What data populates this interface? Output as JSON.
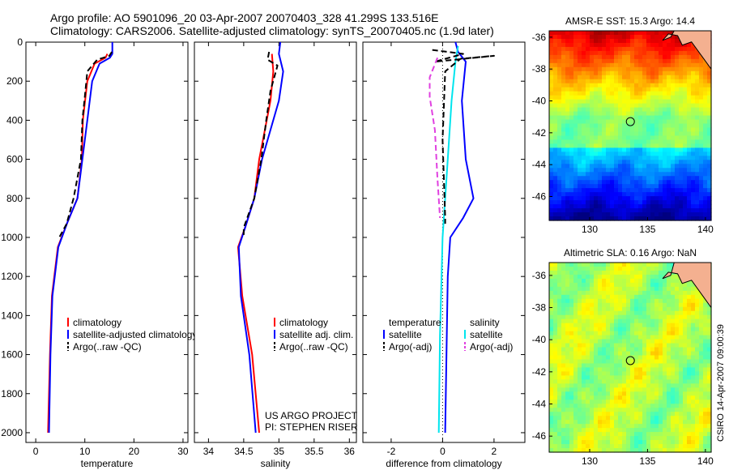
{
  "title": {
    "line1": "Argo profile: AO 5901096_20 03-Apr-2007 20070403_328 41.299S 133.516E",
    "line2": "Climatology: CARS2006. Satellite-adjusted climatology: synTS_20070405.nc (1.9d later)"
  },
  "credit": {
    "line1": "US ARGO PROJECT",
    "line2": "PI: STEPHEN RISER"
  },
  "side_stamp": "CSIRO 14-Apr-2007 09:00:39",
  "colors": {
    "climatology": "#ff0000",
    "satellite": "#0000ff",
    "argo": "#000000",
    "cyan": "#00e5ee",
    "magenta": "#e040e0",
    "land": "#f4b090"
  },
  "chart_data": [
    {
      "id": "temperature",
      "type": "line",
      "xlabel": "temperature",
      "xlim": [
        -2,
        31
      ],
      "ylim": [
        0,
        2050
      ],
      "xticks": [
        0,
        10,
        20,
        30
      ],
      "yticks": [
        0,
        200,
        400,
        600,
        800,
        1000,
        1200,
        1400,
        1600,
        1800,
        2000
      ],
      "y_inverted": true,
      "legend": {
        "placement": "lower-right",
        "entries": [
          "climatology",
          "satellite-adjusted climatology",
          "Argo(..raw -QC)"
        ]
      },
      "series": [
        {
          "name": "climatology",
          "color": "#ff0000",
          "style": "solid",
          "points": [
            [
              14.6,
              60
            ],
            [
              14.2,
              80
            ],
            [
              12,
              110
            ],
            [
              10.5,
              200
            ],
            [
              9.6,
              400
            ],
            [
              9.4,
              600
            ],
            [
              8.5,
              800
            ],
            [
              6.5,
              920
            ],
            [
              4.5,
              1050
            ],
            [
              3.3,
              1300
            ],
            [
              2.9,
              1600
            ],
            [
              2.5,
              2000
            ]
          ]
        },
        {
          "name": "satellite-adjusted climatology",
          "color": "#0000ff",
          "style": "solid",
          "points": [
            [
              15.6,
              0
            ],
            [
              15.6,
              60
            ],
            [
              15.1,
              80
            ],
            [
              13,
              110
            ],
            [
              11.5,
              200
            ],
            [
              10.5,
              400
            ],
            [
              9.5,
              600
            ],
            [
              8.5,
              800
            ],
            [
              6.5,
              920
            ],
            [
              4.6,
              1050
            ],
            [
              3.4,
              1300
            ],
            [
              3.0,
              1600
            ],
            [
              2.7,
              2000
            ]
          ]
        },
        {
          "name": "Argo(..raw -QC)",
          "color": "#000000",
          "style": "dashed",
          "points": [
            [
              15.5,
              50
            ],
            [
              15.0,
              70
            ],
            [
              12.5,
              90
            ],
            [
              10.5,
              150
            ],
            [
              10.0,
              280
            ],
            [
              9.5,
              400
            ],
            [
              9.2,
              600
            ],
            [
              7.7,
              800
            ],
            [
              6.3,
              930
            ],
            [
              4.8,
              1000
            ]
          ]
        }
      ]
    },
    {
      "id": "salinity",
      "type": "line",
      "xlabel": "salinity",
      "xlim": [
        33.8,
        36.1
      ],
      "ylim": [
        0,
        2050
      ],
      "xticks": [
        34,
        34.5,
        35,
        35.5,
        36
      ],
      "yticks": [
        0,
        200,
        400,
        600,
        800,
        1000,
        1200,
        1400,
        1600,
        1800,
        2000
      ],
      "y_inverted": true,
      "legend": {
        "placement": "lower-right",
        "entries": [
          "climatology",
          "satellite adj. clim.",
          "Argo(..raw -QC)"
        ]
      },
      "series": [
        {
          "name": "climatology",
          "color": "#ff0000",
          "style": "solid",
          "points": [
            [
              34.9,
              60
            ],
            [
              34.92,
              150
            ],
            [
              34.88,
              300
            ],
            [
              34.8,
              450
            ],
            [
              34.72,
              600
            ],
            [
              34.65,
              800
            ],
            [
              34.52,
              950
            ],
            [
              34.42,
              1050
            ],
            [
              34.48,
              1300
            ],
            [
              34.62,
              1600
            ],
            [
              34.72,
              2000
            ]
          ]
        },
        {
          "name": "satellite adj. clim.",
          "color": "#0000ff",
          "style": "solid",
          "points": [
            [
              35.02,
              0
            ],
            [
              35.0,
              60
            ],
            [
              35.06,
              150
            ],
            [
              35.0,
              300
            ],
            [
              34.88,
              450
            ],
            [
              34.76,
              600
            ],
            [
              34.65,
              800
            ],
            [
              34.52,
              950
            ],
            [
              34.43,
              1050
            ],
            [
              34.46,
              1300
            ],
            [
              34.58,
              1600
            ],
            [
              34.67,
              2000
            ]
          ]
        },
        {
          "name": "Argo(..raw -QC)",
          "color": "#000000",
          "style": "dashed",
          "points": [
            [
              34.86,
              50
            ],
            [
              34.84,
              90
            ],
            [
              34.98,
              120
            ],
            [
              34.88,
              250
            ],
            [
              34.82,
              400
            ],
            [
              34.75,
              600
            ],
            [
              34.65,
              800
            ],
            [
              34.5,
              950
            ],
            [
              34.5,
              1000
            ]
          ]
        }
      ]
    },
    {
      "id": "difference",
      "type": "line",
      "xlabel": "difference from climatology",
      "xlim": [
        -3.1,
        3.2
      ],
      "ylim": [
        0,
        2050
      ],
      "xticks": [
        -2,
        0,
        2
      ],
      "yticks": [
        0,
        200,
        400,
        600,
        800,
        1000,
        1200,
        1400,
        1600,
        1800,
        2000
      ],
      "y_inverted": true,
      "legend": {
        "placement": "lower-middle",
        "groups": [
          {
            "heading": "temperature",
            "entries": [
              "satellite",
              "Argo(-adj)"
            ]
          },
          {
            "heading": "salinity",
            "entries": [
              "satellite",
              "Argo(-adj)"
            ]
          }
        ]
      },
      "series": [
        {
          "name": "temperature satellite",
          "color": "#0000ff",
          "style": "solid",
          "points": [
            [
              0.5,
              0
            ],
            [
              0.6,
              50
            ],
            [
              0.9,
              100
            ],
            [
              0.75,
              300
            ],
            [
              0.9,
              600
            ],
            [
              1.2,
              800
            ],
            [
              0.8,
              900
            ],
            [
              0.3,
              1000
            ],
            [
              0.2,
              1200
            ],
            [
              0.15,
              1600
            ],
            [
              0.1,
              2000
            ]
          ]
        },
        {
          "name": "salinity satellite",
          "color": "#00e5ee",
          "style": "solid",
          "points": [
            [
              0.6,
              20
            ],
            [
              0.5,
              100
            ],
            [
              0.35,
              300
            ],
            [
              0.2,
              600
            ],
            [
              0.0,
              1000
            ],
            [
              -0.1,
              1500
            ],
            [
              -0.15,
              2000
            ]
          ]
        },
        {
          "name": "temperature Argo(-adj)",
          "color": "#000000",
          "style": "dashed",
          "points": [
            [
              -0.4,
              40
            ],
            [
              0.8,
              60
            ],
            [
              -0.3,
              100
            ],
            [
              2.0,
              70
            ],
            [
              0.7,
              85
            ],
            [
              0.1,
              150
            ],
            [
              0.0,
              500
            ],
            [
              0.1,
              900
            ],
            [
              0.1,
              930
            ]
          ]
        },
        {
          "name": "salinity Argo(-adj)",
          "color": "#e040e0",
          "style": "dashed",
          "points": [
            [
              -0.2,
              80
            ],
            [
              -0.5,
              180
            ],
            [
              -0.5,
              280
            ],
            [
              -0.3,
              450
            ],
            [
              -0.2,
              700
            ],
            [
              -0.1,
              900
            ]
          ]
        }
      ]
    },
    {
      "id": "sst",
      "type": "heatmap",
      "title": "AMSR-E SST: 15.3 Argo: 14.4",
      "xlim": [
        126.5,
        140.5
      ],
      "ylim": [
        -47.5,
        -35.6
      ],
      "xticks": [
        130,
        135,
        140
      ],
      "yticks": [
        -36,
        -38,
        -40,
        -42,
        -44,
        -46
      ],
      "colormap": "jet",
      "marker": {
        "lon": 133.516,
        "lat": -41.299
      }
    },
    {
      "id": "sla",
      "type": "heatmap",
      "title": "Altimetric SLA: 0.16 Argo: NaN",
      "xlim": [
        126.5,
        140.5
      ],
      "ylim": [
        -47,
        -35.2
      ],
      "xticks": [
        130,
        135,
        140
      ],
      "yticks": [
        -36,
        -38,
        -40,
        -42,
        -44,
        -46
      ],
      "colormap": "jet",
      "marker": {
        "lon": 133.516,
        "lat": -41.299
      }
    }
  ]
}
